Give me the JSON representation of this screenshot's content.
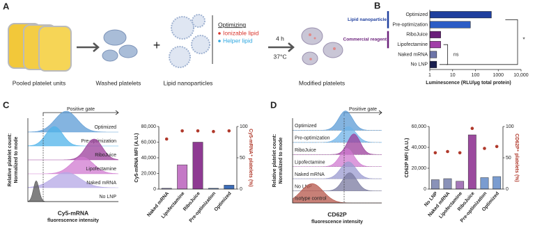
{
  "panel_labels": [
    "A",
    "B",
    "C",
    "D"
  ],
  "schematic": {
    "steps": [
      "Pooled platelet units",
      "Washed platelets",
      "Lipid nanoparticles",
      "Modified platelets"
    ],
    "plus": "+",
    "optimizing": "Optimizing",
    "components": [
      "Ionizable lipid",
      "Helper lipid"
    ],
    "condition": [
      "4 h",
      "37°C"
    ]
  },
  "histograms": [
    {
      "gate": "Positive gate",
      "rows": [
        "Optimized",
        "Pre-optimization",
        "RiboJuice",
        "Lipofectamine",
        "Naked mRNA",
        "No LNP"
      ],
      "ylabel": [
        "Relative platelet count:",
        "Normalized to mode"
      ],
      "xlabel": [
        "Cy5-mRNA",
        "fluorescence intensity"
      ]
    },
    {
      "gate": "Positive gate",
      "rows": [
        "Optimized",
        "Pre-optimization",
        "RiboJuice",
        "Lipofectamine",
        "Naked mRNA",
        "No LNP",
        "Isotype control"
      ],
      "ylabel": [
        "Relative platelet count:",
        "Normalized to mode"
      ],
      "xlabel": [
        "CD62P",
        "fluorescence intensity"
      ]
    }
  ],
  "chart_data": [
    {
      "type": "bar",
      "orientation": "horizontal",
      "log_x": true,
      "categories": [
        "Optimized",
        "Pre-optimization",
        "RiboJuice",
        "Lipofectamine",
        "Naked mRNA",
        "No LNP"
      ],
      "values": [
        500,
        60,
        3,
        3,
        2,
        2
      ],
      "colors": [
        "#1f3f9e",
        "#2c5cc5",
        "#6a1f7a",
        "#a23fa8",
        "#6d75a8",
        "#1a1f4f"
      ],
      "xlim": [
        1,
        10000
      ],
      "xticks": [
        1,
        10,
        100,
        1000,
        {
          "value": 10000,
          "label": "10,000"
        }
      ],
      "xlabel": "Luminescence (RLU/μg total protein)",
      "groups": [
        {
          "label": "Lipid nanoparticle",
          "color": "#1f3f9e"
        },
        {
          "label": "Commercial reagent",
          "color": "#6a1f7a"
        }
      ],
      "annotations": [
        "ns",
        "*"
      ]
    },
    {
      "type": "bar",
      "categories": [
        "Naked mRNA",
        "Lipofectamine",
        "RiboJuice",
        "Pre-optimization",
        "Optimized"
      ],
      "series": [
        {
          "colors": [
            "#8c84c0",
            "#c478c6",
            "#8e3a92",
            "#4a78c0",
            "#3c6db8"
          ],
          "values": [
            1000,
            31000,
            60000,
            1000,
            5000
          ]
        },
        {
          "type": "scatter",
          "axis": "y2",
          "color": "#b0392b",
          "values": [
            80,
            93,
            93,
            92,
            93
          ]
        }
      ],
      "ylim": [
        0,
        80000
      ],
      "yticks": [
        0,
        {
          "value": 20000,
          "label": "20,000"
        },
        {
          "value": 40000,
          "label": "40,000"
        },
        {
          "value": 60000,
          "label": "60,000"
        },
        {
          "value": 80000,
          "label": "80,000"
        }
      ],
      "y2lim": [
        0,
        100
      ],
      "y2ticks": [
        0,
        50,
        100
      ],
      "ylabel": "Cy5-mRNA MFI (A.U.)",
      "y2label": "Cy5-mRNA⁺ platelets (%)"
    },
    {
      "type": "bar",
      "categories": [
        "No LNP",
        "Naked mRNA",
        "Lipofectamine",
        "RiboJuice",
        "Pre-optimization",
        "Optimized"
      ],
      "series": [
        {
          "colors": [
            "#8a92b8",
            "#8a92b8",
            "#a678b8",
            "#9b4a9e",
            "#7a9cd0",
            "#7a9cd0"
          ],
          "values": [
            9000,
            10000,
            7500,
            52000,
            11000,
            12000
          ]
        },
        {
          "type": "scatter",
          "axis": "y2",
          "color": "#b0392b",
          "values": [
            58,
            60,
            58,
            97,
            65,
            68
          ]
        }
      ],
      "ylim": [
        0,
        60000
      ],
      "yticks": [
        0,
        {
          "value": 20000,
          "label": "20,000"
        },
        {
          "value": 40000,
          "label": "40,000"
        },
        {
          "value": 60000,
          "label": "60,000"
        }
      ],
      "y2lim": [
        0,
        100
      ],
      "y2ticks": [
        0,
        50,
        100
      ],
      "ylabel": "CD62P MFI (A.U.)",
      "y2label": "CD62P⁺ platelets (%)"
    }
  ]
}
